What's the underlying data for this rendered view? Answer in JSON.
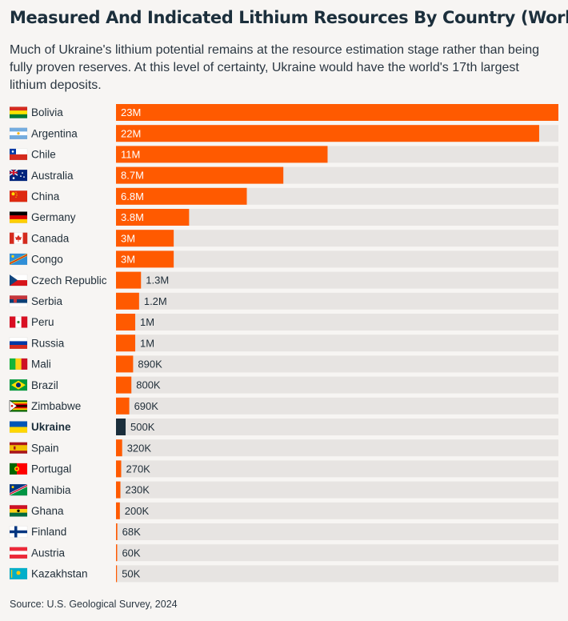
{
  "title": "Measured And Indicated Lithium Resources By Country (World)",
  "subtitle": "Much of Ukraine's lithium potential remains at the resource estimation stage rather than being fully proven reserves. At this level of certainty, Ukraine would have the world's 17th largest lithium deposits.",
  "source": "Source: U.S. Geological Survey, 2024",
  "colors": {
    "bar": "#ff5a00",
    "highlight": "#1b2e3b",
    "track": "#e7e4e2",
    "background": "#f7f5f3"
  },
  "chart_data": {
    "type": "bar",
    "orientation": "horizontal",
    "title": "Measured And Indicated Lithium Resources By Country (World)",
    "xlim": [
      0,
      23000000
    ],
    "highlight": "Ukraine",
    "categories": [
      "Bolivia",
      "Argentina",
      "Chile",
      "Australia",
      "China",
      "Germany",
      "Canada",
      "Congo",
      "Czech Republic",
      "Serbia",
      "Peru",
      "Russia",
      "Mali",
      "Brazil",
      "Zimbabwe",
      "Ukraine",
      "Spain",
      "Portugal",
      "Namibia",
      "Ghana",
      "Finland",
      "Austria",
      "Kazakhstan"
    ],
    "values": [
      23000000,
      22000000,
      11000000,
      8700000,
      6800000,
      3800000,
      3000000,
      3000000,
      1300000,
      1200000,
      1000000,
      1000000,
      890000,
      800000,
      690000,
      500000,
      320000,
      270000,
      230000,
      200000,
      68000,
      60000,
      50000
    ],
    "value_labels": [
      "23M",
      "22M",
      "11M",
      "8.7M",
      "6.8M",
      "3.8M",
      "3M",
      "3M",
      "1.3M",
      "1.2M",
      "1M",
      "1M",
      "890K",
      "800K",
      "690K",
      "500K",
      "320K",
      "270K",
      "230K",
      "200K",
      "68K",
      "60K",
      "50K"
    ],
    "flags": [
      "bolivia-flag-icon",
      "argentina-flag-icon",
      "chile-flag-icon",
      "australia-flag-icon",
      "china-flag-icon",
      "germany-flag-icon",
      "canada-flag-icon",
      "congo-flag-icon",
      "czech-republic-flag-icon",
      "serbia-flag-icon",
      "peru-flag-icon",
      "russia-flag-icon",
      "mali-flag-icon",
      "brazil-flag-icon",
      "zimbabwe-flag-icon",
      "ukraine-flag-icon",
      "spain-flag-icon",
      "portugal-flag-icon",
      "namibia-flag-icon",
      "ghana-flag-icon",
      "finland-flag-icon",
      "austria-flag-icon",
      "kazakhstan-flag-icon"
    ]
  }
}
